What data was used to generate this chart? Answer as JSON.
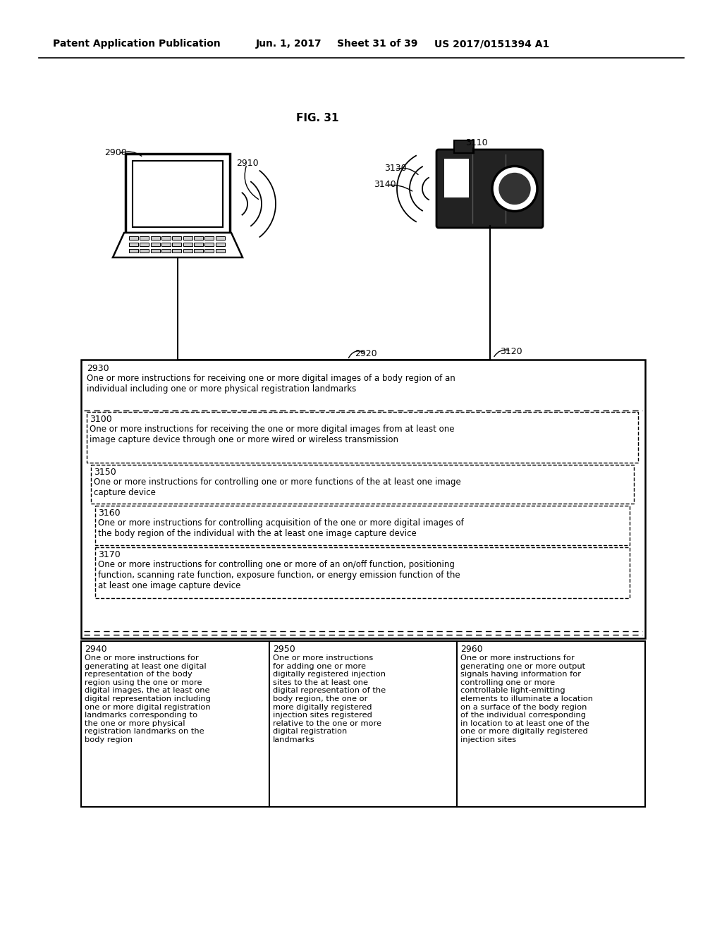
{
  "bg_color": "#ffffff",
  "header_text": "Patent Application Publication",
  "header_date": "Jun. 1, 2017",
  "header_sheet": "Sheet 31 of 39",
  "header_patent": "US 2017/0151394 A1",
  "fig_label": "FIG. 31",
  "label_2900": "2900",
  "label_2910": "2910",
  "label_2920": "2920",
  "label_2930": "2930",
  "label_3100": "3100",
  "label_3110": "3110",
  "label_3120": "3120",
  "label_3130": "3130",
  "label_3140": "3140",
  "label_3150": "3150",
  "label_3160": "3160",
  "label_3170": "3170",
  "label_2940": "2940",
  "label_2950": "2950",
  "label_2960": "2960",
  "text_2930": "One or more instructions for receiving one or more digital images of a body region of an\nindividual including one or more physical registration landmarks",
  "text_3100": "One or more instructions for receiving the one or more digital images from at least one\nimage capture device through one or more wired or wireless transmission",
  "text_3150": "One or more instructions for controlling one or more functions of the at least one image\ncapture device",
  "text_3160": "One or more instructions for controlling acquisition of the one or more digital images of\nthe body region of the individual with the at least one image capture device",
  "text_3170": "One or more instructions for controlling one or more of an on/off function, positioning\nfunction, scanning rate function, exposure function, or energy emission function of the\nat least one image capture device",
  "text_2940": "One or more instructions for\ngenerating at least one digital\nrepresentation of the body\nregion using the one or more\ndigital images, the at least one\ndigital representation including\none or more digital registration\nlandmarks corresponding to\nthe one or more physical\nregistration landmarks on the\nbody region",
  "text_2950": "One or more instructions\nfor adding one or more\ndigitally registered injection\nsites to the at least one\ndigital representation of the\nbody region, the one or\nmore digitally registered\ninjection sites registered\nrelative to the one or more\ndigital registration\nlandmarks",
  "text_2960": "One or more instructions for\ngenerating one or more output\nsignals having information for\ncontrolling one or more\ncontrollable light-emitting\nelements to illuminate a location\non a surface of the body region\nof the individual corresponding\nin location to at least one of the\none or more digitally registered\ninjection sites"
}
